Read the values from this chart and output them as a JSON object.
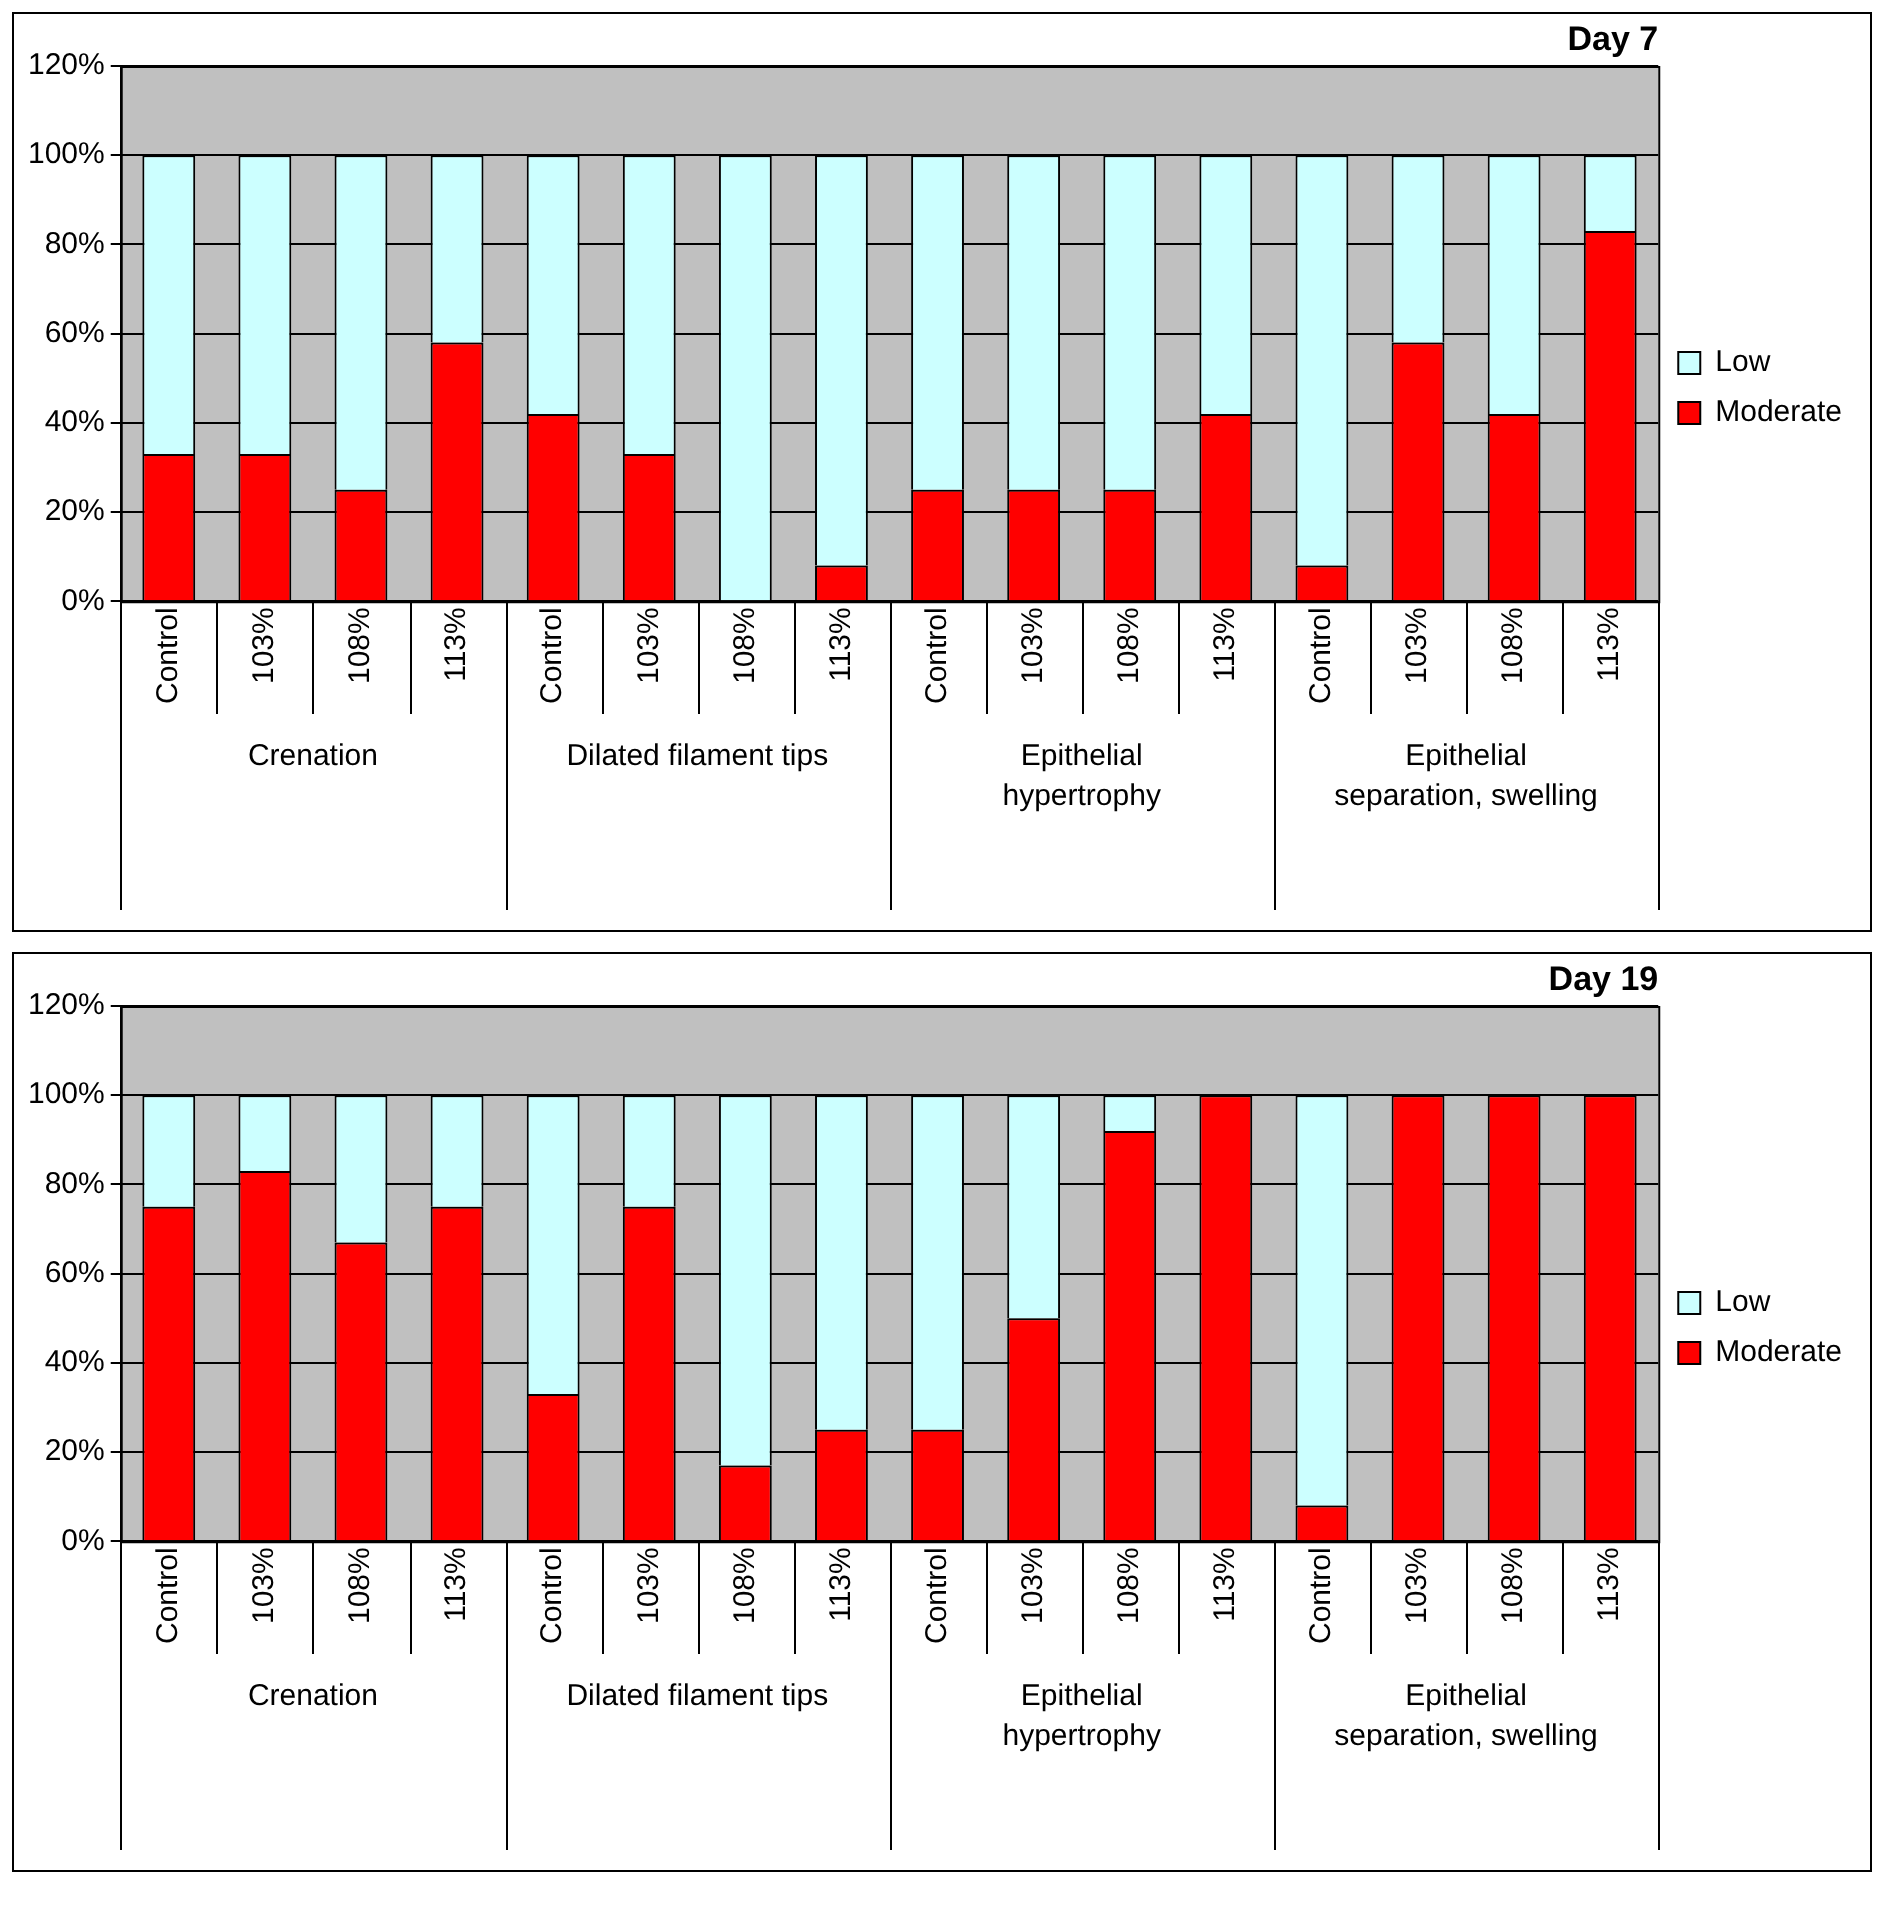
{
  "chart_data": [
    {
      "type": "bar",
      "title": "Day 7",
      "stacked": true,
      "legend": "right",
      "grid": "y",
      "categories": [
        "Control",
        "103%",
        "108%",
        "113%",
        "Control",
        "103%",
        "108%",
        "113%",
        "Control",
        "103%",
        "108%",
        "113%",
        "Control",
        "103%",
        "108%",
        "113%"
      ],
      "annotations": [
        "Crenation",
        "Dilated filament tips",
        "Epithelial hypertrophy",
        "Epithelial separation, swelling"
      ],
      "series": [
        {
          "name": "Moderate",
          "color": "#ff0000",
          "values": [
            33,
            33,
            25,
            58,
            42,
            33,
            0,
            8,
            25,
            25,
            25,
            42,
            8,
            58,
            42,
            83
          ]
        },
        {
          "name": "Low",
          "color": "#ccffff",
          "values": [
            67,
            67,
            75,
            42,
            58,
            67,
            100,
            92,
            75,
            75,
            75,
            58,
            92,
            42,
            58,
            17
          ]
        }
      ],
      "ylim": [
        0,
        120
      ],
      "yticks": [
        {
          "value": 0,
          "label": "0%"
        },
        {
          "value": 20,
          "label": "20%"
        },
        {
          "value": 40,
          "label": "40%"
        },
        {
          "value": 60,
          "label": "60%"
        },
        {
          "value": 80,
          "label": "80%"
        },
        {
          "value": 100,
          "label": "100%"
        },
        {
          "value": 120,
          "label": "120%"
        }
      ]
    },
    {
      "type": "bar",
      "title": "Day 19",
      "stacked": true,
      "legend": "right",
      "grid": "y",
      "categories": [
        "Control",
        "103%",
        "108%",
        "113%",
        "Control",
        "103%",
        "108%",
        "113%",
        "Control",
        "103%",
        "108%",
        "113%",
        "Control",
        "103%",
        "108%",
        "113%"
      ],
      "annotations": [
        "Crenation",
        "Dilated filament tips",
        "Epithelial hypertrophy",
        "Epithelial separation, swelling"
      ],
      "series": [
        {
          "name": "Moderate",
          "color": "#ff0000",
          "values": [
            75,
            83,
            67,
            75,
            33,
            75,
            17,
            25,
            25,
            50,
            92,
            100,
            8,
            100,
            100,
            100
          ]
        },
        {
          "name": "Low",
          "color": "#ccffff",
          "values": [
            25,
            17,
            33,
            25,
            67,
            25,
            83,
            75,
            75,
            50,
            8,
            0,
            92,
            0,
            0,
            0
          ]
        }
      ],
      "ylim": [
        0,
        120
      ],
      "yticks": [
        {
          "value": 0,
          "label": "0%"
        },
        {
          "value": 20,
          "label": "20%"
        },
        {
          "value": 40,
          "label": "40%"
        },
        {
          "value": 60,
          "label": "60%"
        },
        {
          "value": 80,
          "label": "80%"
        },
        {
          "value": 100,
          "label": "100%"
        },
        {
          "value": 120,
          "label": "120%"
        }
      ]
    }
  ]
}
